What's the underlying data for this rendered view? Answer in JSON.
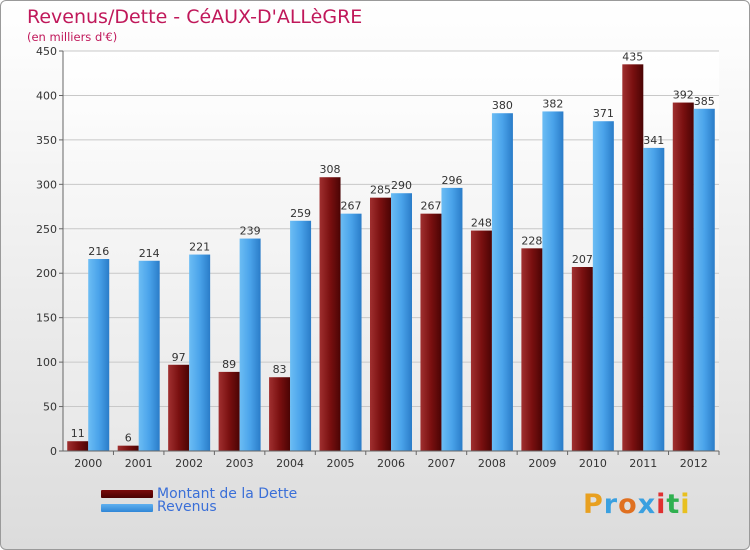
{
  "header": {
    "title": "Revenus/Dette - CéAUX-D'ALLèGRE",
    "subtitle": "(en milliers d'€)"
  },
  "brand": {
    "name": "Proxiti",
    "letters": [
      "P",
      "r",
      "o",
      "x",
      "i",
      "t",
      "i"
    ],
    "colors": [
      "#e8a020",
      "#3aa0e0",
      "#e07020",
      "#3aa0e0",
      "#e03030",
      "#30b050",
      "#e8c020"
    ]
  },
  "chart_data": {
    "type": "bar",
    "title": "Revenus/Dette - CéAUX-D'ALLèGRE",
    "ylabel": "(en milliers d'€)",
    "xlabel": "",
    "categories": [
      "2000",
      "2001",
      "2002",
      "2003",
      "2004",
      "2005",
      "2006",
      "2007",
      "2008",
      "2009",
      "2010",
      "2011",
      "2012"
    ],
    "series": [
      {
        "name": "Montant de la Dette",
        "values": [
          11,
          6,
          97,
          89,
          83,
          308,
          285,
          267,
          248,
          228,
          207,
          435,
          392
        ],
        "color": "#7a1010"
      },
      {
        "name": "Revenus",
        "values": [
          216,
          214,
          221,
          239,
          259,
          267,
          290,
          296,
          380,
          382,
          371,
          341,
          385
        ],
        "color": "#4aa3ea"
      }
    ],
    "ylim": [
      0,
      450
    ],
    "yticks": [
      0,
      50,
      100,
      150,
      200,
      250,
      300,
      350,
      400,
      450
    ],
    "grid": true,
    "legend": "bottom-left"
  }
}
